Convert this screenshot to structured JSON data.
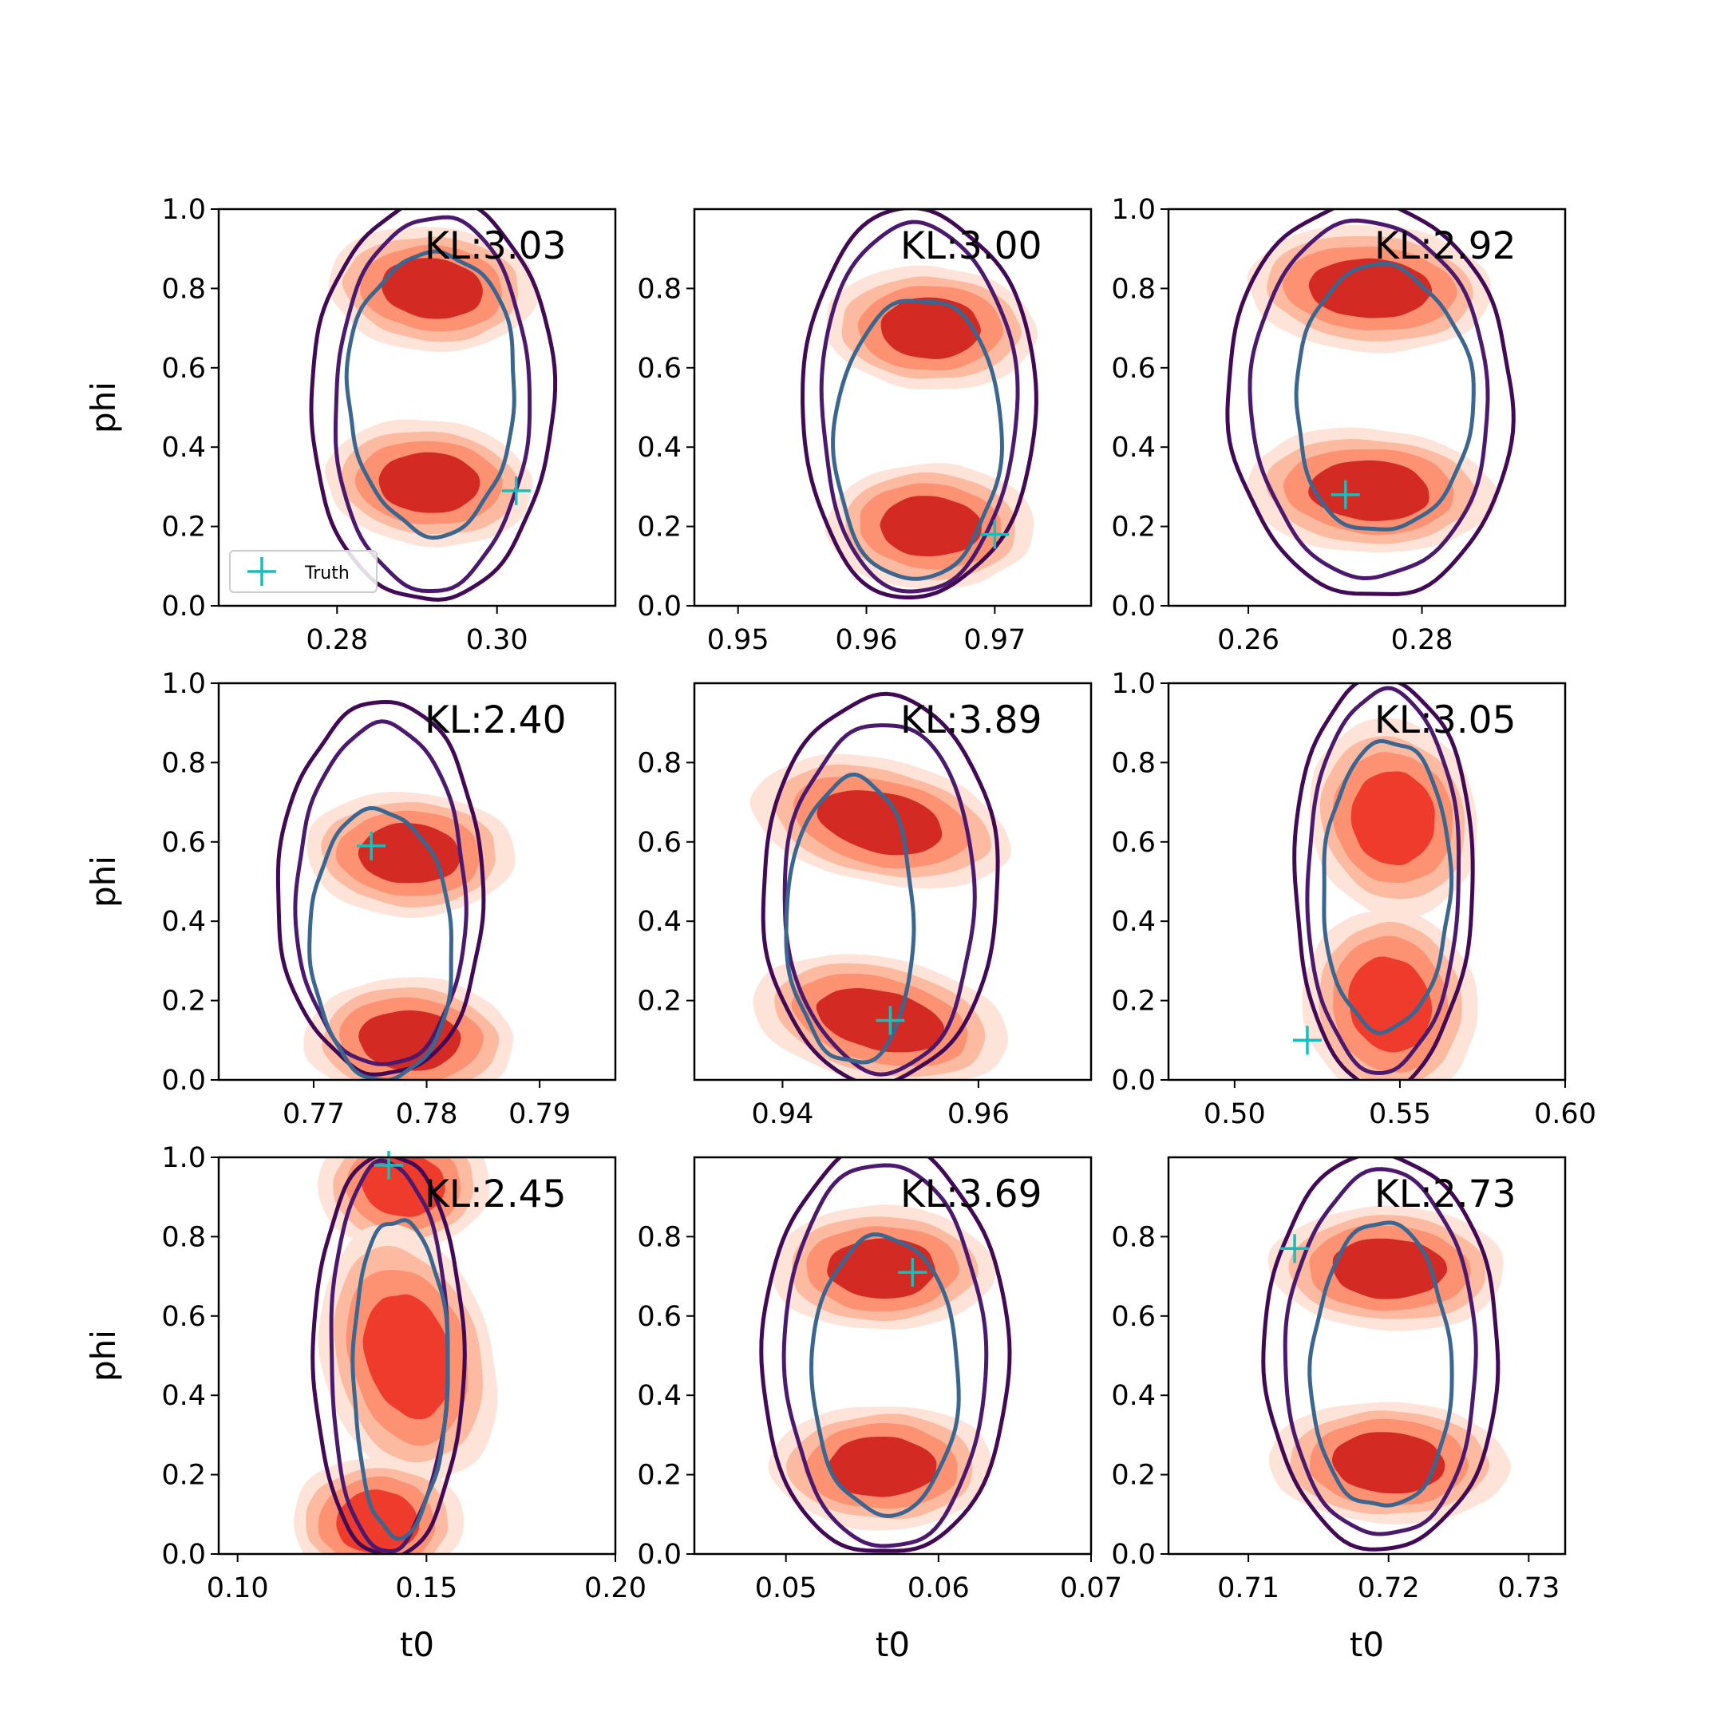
{
  "figure": {
    "xlabel": "t0",
    "ylabel": "phi",
    "legend_label": "Truth",
    "colors": {
      "red_levels": [
        "#fee4d8",
        "#fcbba1",
        "#fc9272",
        "#ef3b2c",
        "#d42a24"
      ],
      "contour_outer": "#420a56",
      "contour_mid": "#4b1a6e",
      "contour_inner": "#3b6690",
      "truth_marker": "#17bebb"
    }
  },
  "chart_data": [
    {
      "type": "contour",
      "title": "",
      "kl_label": "KL:3.03",
      "xlabel": "",
      "ylabel": "phi",
      "xlim": [
        0.2652,
        0.3148
      ],
      "ylim": [
        0.0,
        1.0
      ],
      "xticks": [
        {
          "v": 0.28,
          "label": "0.28"
        },
        {
          "v": 0.3,
          "label": "0.30"
        }
      ],
      "yticks": [
        {
          "v": 0.0,
          "label": "0.0"
        },
        {
          "v": 0.2,
          "label": "0.2"
        },
        {
          "v": 0.4,
          "label": "0.4"
        },
        {
          "v": 0.6,
          "label": "0.6"
        },
        {
          "v": 0.8,
          "label": "0.8"
        },
        {
          "v": 1.0,
          "label": "1.0"
        }
      ],
      "truth": {
        "x": 0.3024,
        "y": 0.29
      },
      "legend": true,
      "modes": [
        {
          "x": 0.2919,
          "y": 0.8
        },
        {
          "x": 0.2915,
          "y": 0.31
        }
      ],
      "red_shape": "two_ellipses",
      "red_tilt": 0.1,
      "mode_rx_frac": 0.16,
      "contours": [
        {
          "cx": 0.2919,
          "cy": 0.52,
          "rx": 0.0151,
          "ry": 0.51
        },
        {
          "cx": 0.2919,
          "cy": 0.51,
          "rx": 0.0122,
          "ry": 0.47
        },
        {
          "cx": 0.2919,
          "cy": 0.54,
          "rx": 0.0105,
          "ry": 0.355
        }
      ]
    },
    {
      "type": "contour",
      "title": "",
      "kl_label": "KL:3.00",
      "xlabel": "",
      "ylabel": "",
      "xlim": [
        0.9466,
        0.9775
      ],
      "ylim": [
        0.0,
        1.0
      ],
      "xticks": [
        {
          "v": 0.95,
          "label": "0.95"
        },
        {
          "v": 0.96,
          "label": "0.96"
        },
        {
          "v": 0.97,
          "label": "0.97"
        }
      ],
      "yticks": [
        {
          "v": 0.0,
          "label": "0.0"
        },
        {
          "v": 0.2,
          "label": "0.2"
        },
        {
          "v": 0.4,
          "label": "0.4"
        },
        {
          "v": 0.6,
          "label": "0.6"
        },
        {
          "v": 0.8,
          "label": "0.8"
        }
      ],
      "truth": {
        "x": 0.97,
        "y": 0.18
      },
      "legend": false,
      "modes": [
        {
          "x": 0.965,
          "y": 0.7
        },
        {
          "x": 0.965,
          "y": 0.2
        }
      ],
      "red_shape": "two_ellipses",
      "red_tilt": 0.05,
      "mode_rx_frac": 0.16,
      "contours": [
        {
          "cx": 0.964,
          "cy": 0.51,
          "rx": 0.0091,
          "ry": 0.49
        },
        {
          "cx": 0.964,
          "cy": 0.5,
          "rx": 0.0076,
          "ry": 0.465
        },
        {
          "cx": 0.964,
          "cy": 0.42,
          "rx": 0.0064,
          "ry": 0.36
        }
      ]
    },
    {
      "type": "contour",
      "title": "",
      "kl_label": "KL:2.92",
      "xlabel": "",
      "ylabel": "",
      "xlim": [
        0.2508,
        0.2965
      ],
      "ylim": [
        0.0,
        1.0
      ],
      "xticks": [
        {
          "v": 0.26,
          "label": "0.26"
        },
        {
          "v": 0.28,
          "label": "0.28"
        }
      ],
      "yticks": [
        {
          "v": 0.0,
          "label": "0.0"
        },
        {
          "v": 0.2,
          "label": "0.2"
        },
        {
          "v": 0.4,
          "label": "0.4"
        },
        {
          "v": 0.6,
          "label": "0.6"
        },
        {
          "v": 0.8,
          "label": "0.8"
        },
        {
          "v": 1.0,
          "label": "1.0"
        }
      ],
      "truth": {
        "x": 0.2712,
        "y": 0.28
      },
      "legend": false,
      "modes": [
        {
          "x": 0.274,
          "y": 0.8
        },
        {
          "x": 0.274,
          "y": 0.29
        }
      ],
      "red_shape": "two_ellipses",
      "red_tilt": 0.08,
      "mode_rx_frac": 0.19,
      "contours": [
        {
          "cx": 0.274,
          "cy": 0.52,
          "rx": 0.0163,
          "ry": 0.5
        },
        {
          "cx": 0.274,
          "cy": 0.52,
          "rx": 0.0135,
          "ry": 0.455
        },
        {
          "cx": 0.2755,
          "cy": 0.52,
          "rx": 0.0102,
          "ry": 0.335
        }
      ]
    },
    {
      "type": "contour",
      "title": "",
      "kl_label": "KL:2.40",
      "xlabel": "",
      "ylabel": "phi",
      "xlim": [
        0.7616,
        0.7967
      ],
      "ylim": [
        0.0,
        1.0
      ],
      "xticks": [
        {
          "v": 0.77,
          "label": "0.77"
        },
        {
          "v": 0.78,
          "label": "0.78"
        },
        {
          "v": 0.79,
          "label": "0.79"
        }
      ],
      "yticks": [
        {
          "v": 0.0,
          "label": "0.0"
        },
        {
          "v": 0.2,
          "label": "0.2"
        },
        {
          "v": 0.4,
          "label": "0.4"
        },
        {
          "v": 0.6,
          "label": "0.6"
        },
        {
          "v": 0.8,
          "label": "0.8"
        },
        {
          "v": 1.0,
          "label": "1.0"
        }
      ],
      "truth": {
        "x": 0.7751,
        "y": 0.59
      },
      "legend": false,
      "modes": [
        {
          "x": 0.7785,
          "y": 0.57
        },
        {
          "x": 0.7785,
          "y": 0.1
        }
      ],
      "red_shape": "two_ellipses",
      "red_tilt": 0.05,
      "mode_rx_frac": 0.16,
      "contours": [
        {
          "cx": 0.776,
          "cy": 0.48,
          "rx": 0.0091,
          "ry": 0.47
        },
        {
          "cx": 0.776,
          "cy": 0.46,
          "rx": 0.0075,
          "ry": 0.43
        },
        {
          "cx": 0.776,
          "cy": 0.34,
          "rx": 0.0063,
          "ry": 0.34
        }
      ]
    },
    {
      "type": "contour",
      "title": "",
      "kl_label": "KL:3.89",
      "xlabel": "",
      "ylabel": "",
      "xlim": [
        0.931,
        0.9715
      ],
      "ylim": [
        0.0,
        1.0
      ],
      "xticks": [
        {
          "v": 0.94,
          "label": "0.94"
        },
        {
          "v": 0.96,
          "label": "0.96"
        }
      ],
      "yticks": [
        {
          "v": 0.2,
          "label": "0.2"
        },
        {
          "v": 0.4,
          "label": "0.4"
        },
        {
          "v": 0.6,
          "label": "0.6"
        },
        {
          "v": 0.8,
          "label": "0.8"
        }
      ],
      "truth": {
        "x": 0.951,
        "y": 0.15
      },
      "legend": false,
      "modes": [
        {
          "x": 0.95,
          "y": 0.65
        },
        {
          "x": 0.95,
          "y": 0.15
        }
      ],
      "red_shape": "two_ellipses",
      "red_tilt": 0.3,
      "mode_rx_frac": 0.2,
      "contours": [
        {
          "cx": 0.95,
          "cy": 0.48,
          "rx": 0.0122,
          "ry": 0.48
        },
        {
          "cx": 0.95,
          "cy": 0.46,
          "rx": 0.0097,
          "ry": 0.44
        },
        {
          "cx": 0.947,
          "cy": 0.4,
          "rx": 0.0065,
          "ry": 0.36
        }
      ]
    },
    {
      "type": "contour",
      "title": "",
      "kl_label": "KL:3.05",
      "xlabel": "",
      "ylabel": "",
      "xlim": [
        0.48,
        0.6
      ],
      "ylim": [
        0.0,
        1.0
      ],
      "xticks": [
        {
          "v": 0.5,
          "label": "0.50"
        },
        {
          "v": 0.55,
          "label": "0.55"
        },
        {
          "v": 0.6,
          "label": "0.60"
        }
      ],
      "yticks": [
        {
          "v": 0.0,
          "label": "0.0"
        },
        {
          "v": 0.2,
          "label": "0.2"
        },
        {
          "v": 0.4,
          "label": "0.4"
        },
        {
          "v": 0.6,
          "label": "0.6"
        },
        {
          "v": 0.8,
          "label": "0.8"
        },
        {
          "v": 1.0,
          "label": "1.0"
        }
      ],
      "truth": {
        "x": 0.522,
        "y": 0.1
      },
      "legend": false,
      "modes": [
        {
          "x": 0.548,
          "y": 0.66
        },
        {
          "x": 0.547,
          "y": 0.19
        }
      ],
      "red_shape": "vertical_blobs",
      "red_tilt": -0.05,
      "mode_rx_frac": 0.13,
      "contours": [
        {
          "cx": 0.545,
          "cy": 0.5,
          "rx": 0.027,
          "ry": 0.52
        },
        {
          "cx": 0.545,
          "cy": 0.5,
          "rx": 0.023,
          "ry": 0.48
        },
        {
          "cx": 0.546,
          "cy": 0.49,
          "rx": 0.0195,
          "ry": 0.36
        }
      ]
    },
    {
      "type": "contour",
      "title": "",
      "kl_label": "KL:2.45",
      "xlabel": "t0",
      "ylabel": "phi",
      "xlim": [
        0.095,
        0.2
      ],
      "ylim": [
        0.0,
        1.0
      ],
      "xticks": [
        {
          "v": 0.1,
          "label": "0.10"
        },
        {
          "v": 0.15,
          "label": "0.15"
        },
        {
          "v": 0.2,
          "label": "0.20"
        }
      ],
      "yticks": [
        {
          "v": 0.0,
          "label": "0.0"
        },
        {
          "v": 0.2,
          "label": "0.2"
        },
        {
          "v": 0.4,
          "label": "0.4"
        },
        {
          "v": 0.6,
          "label": "0.6"
        },
        {
          "v": 0.8,
          "label": "0.8"
        },
        {
          "v": 1.0,
          "label": "1.0"
        }
      ],
      "truth": {
        "x": 0.14,
        "y": 0.98
      },
      "legend": false,
      "modes": [
        {
          "x": 0.144,
          "y": 0.93
        },
        {
          "x": 0.145,
          "y": 0.5
        },
        {
          "x": 0.137,
          "y": 0.08
        }
      ],
      "red_shape": "three_blobs",
      "red_tilt": 0.0,
      "mode_rx_frac": 0.13,
      "contours": [
        {
          "cx": 0.14,
          "cy": 0.5,
          "rx": 0.0195,
          "ry": 0.52
        },
        {
          "cx": 0.14,
          "cy": 0.5,
          "rx": 0.0155,
          "ry": 0.49
        },
        {
          "cx": 0.143,
          "cy": 0.45,
          "rx": 0.0125,
          "ry": 0.4
        }
      ]
    },
    {
      "type": "contour",
      "title": "",
      "kl_label": "KL:3.69",
      "xlabel": "t0",
      "ylabel": "",
      "xlim": [
        0.044,
        0.07
      ],
      "ylim": [
        0.0,
        1.0
      ],
      "xticks": [
        {
          "v": 0.05,
          "label": "0.05"
        },
        {
          "v": 0.06,
          "label": "0.06"
        },
        {
          "v": 0.07,
          "label": "0.07"
        }
      ],
      "yticks": [
        {
          "v": 0.0,
          "label": "0.0"
        },
        {
          "v": 0.2,
          "label": "0.2"
        },
        {
          "v": 0.4,
          "label": "0.4"
        },
        {
          "v": 0.6,
          "label": "0.6"
        },
        {
          "v": 0.8,
          "label": "0.8"
        }
      ],
      "truth": {
        "x": 0.0583,
        "y": 0.71
      },
      "legend": false,
      "modes": [
        {
          "x": 0.0563,
          "y": 0.72
        },
        {
          "x": 0.0563,
          "y": 0.22
        }
      ],
      "red_shape": "two_ellipses",
      "red_tilt": 0.0,
      "mode_rx_frac": 0.17,
      "contours": [
        {
          "cx": 0.0565,
          "cy": 0.51,
          "rx": 0.0081,
          "ry": 0.52
        },
        {
          "cx": 0.0565,
          "cy": 0.5,
          "rx": 0.0065,
          "ry": 0.49
        },
        {
          "cx": 0.0565,
          "cy": 0.45,
          "rx": 0.0047,
          "ry": 0.36
        }
      ]
    },
    {
      "type": "contour",
      "title": "",
      "kl_label": "KL:2.73",
      "xlabel": "t0",
      "ylabel": "",
      "xlim": [
        0.7043,
        0.7326
      ],
      "ylim": [
        0.0,
        1.0
      ],
      "xticks": [
        {
          "v": 0.71,
          "label": "0.71"
        },
        {
          "v": 0.72,
          "label": "0.72"
        },
        {
          "v": 0.73,
          "label": "0.73"
        }
      ],
      "yticks": [
        {
          "v": 0.0,
          "label": "0.0"
        },
        {
          "v": 0.2,
          "label": "0.2"
        },
        {
          "v": 0.4,
          "label": "0.4"
        },
        {
          "v": 0.6,
          "label": "0.6"
        },
        {
          "v": 0.8,
          "label": "0.8"
        }
      ],
      "truth": {
        "x": 0.7133,
        "y": 0.77
      },
      "legend": false,
      "modes": [
        {
          "x": 0.72,
          "y": 0.72
        },
        {
          "x": 0.72,
          "y": 0.23
        }
      ],
      "red_shape": "two_ellipses",
      "red_tilt": 0.05,
      "mode_rx_frac": 0.18,
      "contours": [
        {
          "cx": 0.7195,
          "cy": 0.51,
          "rx": 0.0085,
          "ry": 0.49
        },
        {
          "cx": 0.7195,
          "cy": 0.5,
          "rx": 0.0068,
          "ry": 0.46
        },
        {
          "cx": 0.7195,
          "cy": 0.47,
          "rx": 0.005,
          "ry": 0.36
        }
      ]
    }
  ]
}
